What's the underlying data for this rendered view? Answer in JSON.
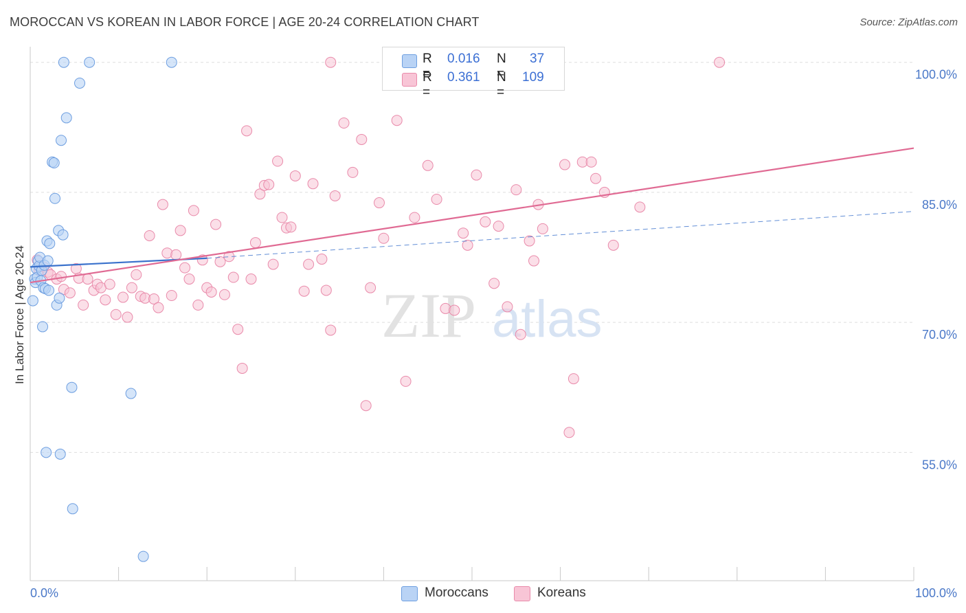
{
  "header": {
    "title": "MOROCCAN VS KOREAN IN LABOR FORCE | AGE 20-24 CORRELATION CHART",
    "source": "Source: ZipAtlas.com"
  },
  "watermark": {
    "zip": "ZIP",
    "atlas": "atlas"
  },
  "legend": {
    "r_label": "R =",
    "n_label": "N =",
    "moroccan": {
      "r": "0.016",
      "n": "37"
    },
    "korean": {
      "r": "0.361",
      "n": "109"
    }
  },
  "bottom_legend": {
    "moroccans": "Moroccans",
    "koreans": "Koreans"
  },
  "colors": {
    "moroccan_fill": "#b9d3f5",
    "moroccan_stroke": "#6d9ee0",
    "moroccan_line": "#3b72cc",
    "korean_fill": "#f8c5d6",
    "korean_stroke": "#e98aaa",
    "korean_line": "#e06a93",
    "axis_text": "#4a78c8",
    "grid": "#dddddd"
  },
  "chart_data": {
    "type": "scatter",
    "title": "MOROCCAN VS KOREAN IN LABOR FORCE | AGE 20-24 CORRELATION CHART",
    "ylabel": "In Labor Force | Age 20-24",
    "xlabel": "",
    "xlim": [
      0,
      100
    ],
    "ylim": [
      40.2,
      101.8
    ],
    "x_tick_labels": [
      "0.0%",
      "100.0%"
    ],
    "y_ticks": [
      100,
      85,
      70,
      55
    ],
    "y_tick_labels": [
      "100.0%",
      "85.0%",
      "70.0%",
      "55.0%"
    ],
    "grid": true,
    "legend_position": "top-center",
    "series": [
      {
        "name": "Moroccans",
        "trend": {
          "x": [
            0,
            20
          ],
          "y": [
            76.4,
            77.4
          ],
          "dashed_to": [
            100,
            82.8
          ]
        },
        "points": [
          [
            0.3,
            72.5
          ],
          [
            0.5,
            75.0
          ],
          [
            0.6,
            74.6
          ],
          [
            0.7,
            76.2
          ],
          [
            0.8,
            75.2
          ],
          [
            0.9,
            77.1
          ],
          [
            1.0,
            76.5
          ],
          [
            1.1,
            77.5
          ],
          [
            1.2,
            74.8
          ],
          [
            1.3,
            76.0
          ],
          [
            1.4,
            69.5
          ],
          [
            1.5,
            74.0
          ],
          [
            1.6,
            76.6
          ],
          [
            1.7,
            73.9
          ],
          [
            1.8,
            55.0
          ],
          [
            1.9,
            79.4
          ],
          [
            2.0,
            77.1
          ],
          [
            2.1,
            73.7
          ],
          [
            2.2,
            79.1
          ],
          [
            2.5,
            88.5
          ],
          [
            2.7,
            88.4
          ],
          [
            2.8,
            84.3
          ],
          [
            3.0,
            72.0
          ],
          [
            3.2,
            80.6
          ],
          [
            3.3,
            72.8
          ],
          [
            3.4,
            54.8
          ],
          [
            3.5,
            91.0
          ],
          [
            3.7,
            80.1
          ],
          [
            3.8,
            100.0
          ],
          [
            4.1,
            93.6
          ],
          [
            4.7,
            62.5
          ],
          [
            4.8,
            48.5
          ],
          [
            5.6,
            97.6
          ],
          [
            6.7,
            100.0
          ],
          [
            11.4,
            61.8
          ],
          [
            12.8,
            43.0
          ],
          [
            16.0,
            100.0
          ]
        ]
      },
      {
        "name": "Koreans",
        "trend": {
          "x": [
            0,
            100
          ],
          "y": [
            74.6,
            90.1
          ]
        },
        "points": [
          [
            0.8,
            77.2
          ],
          [
            1.0,
            76.0
          ],
          [
            1.5,
            76.4
          ],
          [
            2.0,
            75.8
          ],
          [
            2.3,
            75.5
          ],
          [
            3.0,
            75.0
          ],
          [
            3.5,
            75.3
          ],
          [
            3.8,
            73.8
          ],
          [
            4.5,
            73.4
          ],
          [
            5.2,
            76.2
          ],
          [
            5.5,
            75.1
          ],
          [
            6.0,
            72.0
          ],
          [
            6.5,
            75.0
          ],
          [
            7.2,
            73.7
          ],
          [
            7.6,
            74.4
          ],
          [
            8.0,
            74.0
          ],
          [
            8.5,
            72.6
          ],
          [
            9.0,
            74.4
          ],
          [
            9.7,
            70.9
          ],
          [
            10.5,
            72.9
          ],
          [
            11.0,
            70.6
          ],
          [
            11.5,
            74.0
          ],
          [
            12.0,
            75.5
          ],
          [
            12.5,
            73.0
          ],
          [
            13.0,
            72.8
          ],
          [
            13.5,
            80.0
          ],
          [
            14.0,
            72.7
          ],
          [
            14.5,
            71.7
          ],
          [
            15.0,
            83.6
          ],
          [
            15.5,
            78.0
          ],
          [
            16.0,
            73.1
          ],
          [
            16.5,
            77.8
          ],
          [
            17.0,
            80.6
          ],
          [
            17.5,
            76.3
          ],
          [
            18.0,
            75.0
          ],
          [
            18.5,
            82.9
          ],
          [
            19.0,
            72.0
          ],
          [
            19.5,
            77.2
          ],
          [
            20.0,
            74.0
          ],
          [
            20.5,
            73.5
          ],
          [
            21.0,
            81.3
          ],
          [
            21.5,
            77.0
          ],
          [
            22.0,
            73.2
          ],
          [
            22.5,
            77.6
          ],
          [
            23.0,
            75.2
          ],
          [
            23.5,
            69.2
          ],
          [
            24.0,
            64.7
          ],
          [
            24.5,
            92.1
          ],
          [
            25.0,
            75.0
          ],
          [
            25.5,
            79.2
          ],
          [
            26.0,
            84.8
          ],
          [
            26.5,
            85.8
          ],
          [
            27.0,
            85.9
          ],
          [
            27.5,
            76.7
          ],
          [
            28.0,
            88.6
          ],
          [
            28.5,
            82.1
          ],
          [
            29.0,
            80.9
          ],
          [
            29.5,
            81.0
          ],
          [
            30.0,
            86.9
          ],
          [
            31.0,
            73.6
          ],
          [
            31.5,
            76.7
          ],
          [
            32.0,
            86.0
          ],
          [
            33.0,
            77.3
          ],
          [
            33.5,
            73.7
          ],
          [
            34.0,
            69.1
          ],
          [
            34.5,
            84.6
          ],
          [
            35.5,
            93.0
          ],
          [
            36.5,
            87.3
          ],
          [
            37.5,
            91.1
          ],
          [
            38.0,
            60.4
          ],
          [
            38.5,
            74.0
          ],
          [
            39.5,
            83.8
          ],
          [
            40.0,
            79.7
          ],
          [
            40.5,
            100.0
          ],
          [
            41.5,
            93.3
          ],
          [
            42.0,
            100.0
          ],
          [
            42.5,
            63.2
          ],
          [
            42.8,
            100.0
          ],
          [
            43.5,
            82.1
          ],
          [
            45.0,
            88.1
          ],
          [
            46.0,
            84.2
          ],
          [
            47.0,
            71.6
          ],
          [
            48.0,
            71.4
          ],
          [
            49.0,
            80.3
          ],
          [
            49.5,
            78.9
          ],
          [
            50.5,
            87.0
          ],
          [
            51.5,
            81.6
          ],
          [
            52.5,
            74.5
          ],
          [
            53.0,
            81.1
          ],
          [
            54.0,
            71.8
          ],
          [
            55.0,
            85.3
          ],
          [
            55.5,
            68.6
          ],
          [
            56.5,
            79.4
          ],
          [
            57.0,
            77.1
          ],
          [
            57.5,
            83.6
          ],
          [
            58.0,
            80.8
          ],
          [
            60.5,
            88.2
          ],
          [
            61.0,
            57.3
          ],
          [
            61.5,
            63.5
          ],
          [
            62.5,
            88.5
          ],
          [
            63.5,
            88.5
          ],
          [
            64.0,
            86.6
          ],
          [
            65.0,
            85.0
          ],
          [
            66.0,
            78.9
          ],
          [
            69.0,
            83.3
          ],
          [
            78.0,
            100.0
          ],
          [
            34.0,
            100.0
          ]
        ]
      }
    ]
  }
}
